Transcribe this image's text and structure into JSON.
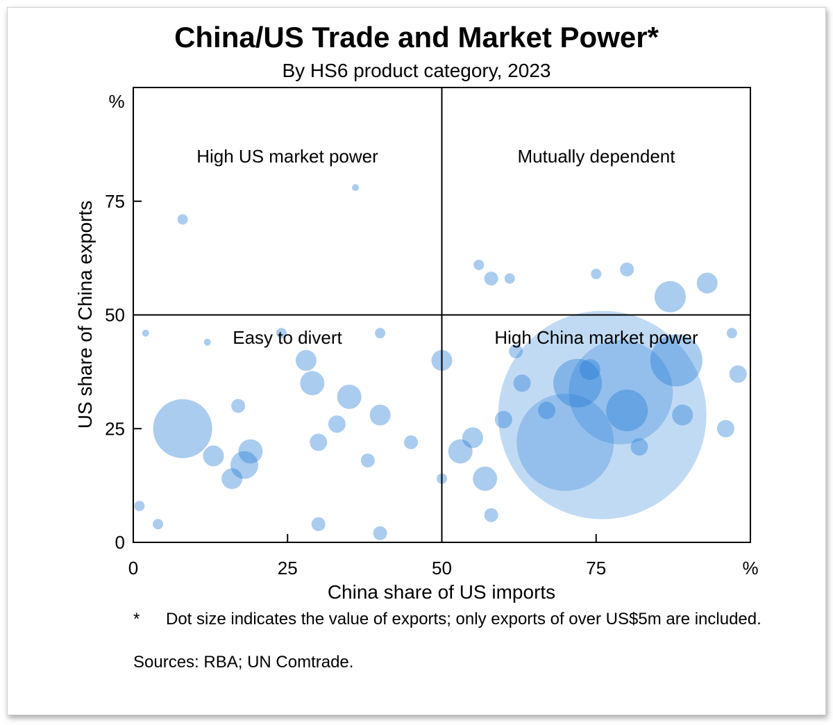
{
  "chart_data": {
    "type": "scatter",
    "title": "China/US Trade and Market Power*",
    "subtitle": "By HS6 product category, 2023",
    "xlabel": "China share of US imports",
    "ylabel": "US share of China exports",
    "x_unit": "%",
    "y_unit": "%",
    "xlim": [
      0,
      100
    ],
    "ylim": [
      0,
      100
    ],
    "x_ticks": [
      "0",
      "25",
      "50",
      "75"
    ],
    "y_ticks": [
      "0",
      "25",
      "50",
      "75"
    ],
    "grid": false,
    "point_color": "#1f7ad6",
    "quadrant_labels": {
      "top_left": "High US market power",
      "top_right": "Mutually dependent",
      "bottom_left": "Easy to divert",
      "bottom_right": "High China market power"
    },
    "quadrant_dividers": {
      "x": 50,
      "y": 50
    },
    "footnote_marker": "*",
    "footnote": "Dot size indicates the value of exports; only exports of over US$5m are included.",
    "sources": "Sources:  RBA; UN Comtrade.",
    "size_encoding": "value of exports",
    "points": [
      {
        "x": 76,
        "y": 28,
        "size": 60
      },
      {
        "x": 79,
        "y": 33,
        "size": 30
      },
      {
        "x": 70,
        "y": 22,
        "size": 28
      },
      {
        "x": 88,
        "y": 40,
        "size": 15
      },
      {
        "x": 8,
        "y": 25,
        "size": 17
      },
      {
        "x": 72,
        "y": 35,
        "size": 14
      },
      {
        "x": 80,
        "y": 29,
        "size": 12
      },
      {
        "x": 87,
        "y": 54,
        "size": 9
      },
      {
        "x": 28,
        "y": 40,
        "size": 6
      },
      {
        "x": 29,
        "y": 35,
        "size": 7
      },
      {
        "x": 35,
        "y": 32,
        "size": 7
      },
      {
        "x": 50,
        "y": 40,
        "size": 6
      },
      {
        "x": 57,
        "y": 14,
        "size": 7
      },
      {
        "x": 55,
        "y": 23,
        "size": 6
      },
      {
        "x": 53,
        "y": 20,
        "size": 7
      },
      {
        "x": 93,
        "y": 57,
        "size": 6
      },
      {
        "x": 98,
        "y": 37,
        "size": 5
      },
      {
        "x": 96,
        "y": 25,
        "size": 5
      },
      {
        "x": 89,
        "y": 28,
        "size": 6
      },
      {
        "x": 18,
        "y": 17,
        "size": 8
      },
      {
        "x": 16,
        "y": 14,
        "size": 6
      },
      {
        "x": 19,
        "y": 20,
        "size": 7
      },
      {
        "x": 13,
        "y": 19,
        "size": 6
      },
      {
        "x": 40,
        "y": 28,
        "size": 6
      },
      {
        "x": 30,
        "y": 22,
        "size": 5
      },
      {
        "x": 33,
        "y": 26,
        "size": 5
      },
      {
        "x": 17,
        "y": 30,
        "size": 4
      },
      {
        "x": 63,
        "y": 35,
        "size": 5
      },
      {
        "x": 60,
        "y": 27,
        "size": 5
      },
      {
        "x": 82,
        "y": 21,
        "size": 5
      },
      {
        "x": 74,
        "y": 38,
        "size": 6
      },
      {
        "x": 67,
        "y": 29,
        "size": 5
      },
      {
        "x": 45,
        "y": 22,
        "size": 4
      },
      {
        "x": 38,
        "y": 18,
        "size": 4
      },
      {
        "x": 80,
        "y": 60,
        "size": 4
      },
      {
        "x": 58,
        "y": 58,
        "size": 4
      },
      {
        "x": 75,
        "y": 59,
        "size": 3
      },
      {
        "x": 8,
        "y": 71,
        "size": 3
      },
      {
        "x": 36,
        "y": 78,
        "size": 2
      },
      {
        "x": 61,
        "y": 58,
        "size": 3
      },
      {
        "x": 56,
        "y": 61,
        "size": 3
      },
      {
        "x": 40,
        "y": 2,
        "size": 4
      },
      {
        "x": 58,
        "y": 6,
        "size": 4
      },
      {
        "x": 30,
        "y": 4,
        "size": 4
      },
      {
        "x": 50,
        "y": 14,
        "size": 3
      },
      {
        "x": 4,
        "y": 4,
        "size": 3
      },
      {
        "x": 1,
        "y": 8,
        "size": 3
      },
      {
        "x": 2,
        "y": 46,
        "size": 2
      },
      {
        "x": 12,
        "y": 44,
        "size": 2
      },
      {
        "x": 24,
        "y": 46,
        "size": 3
      },
      {
        "x": 40,
        "y": 46,
        "size": 3
      },
      {
        "x": 62,
        "y": 42,
        "size": 4
      },
      {
        "x": 97,
        "y": 46,
        "size": 3
      }
    ]
  }
}
